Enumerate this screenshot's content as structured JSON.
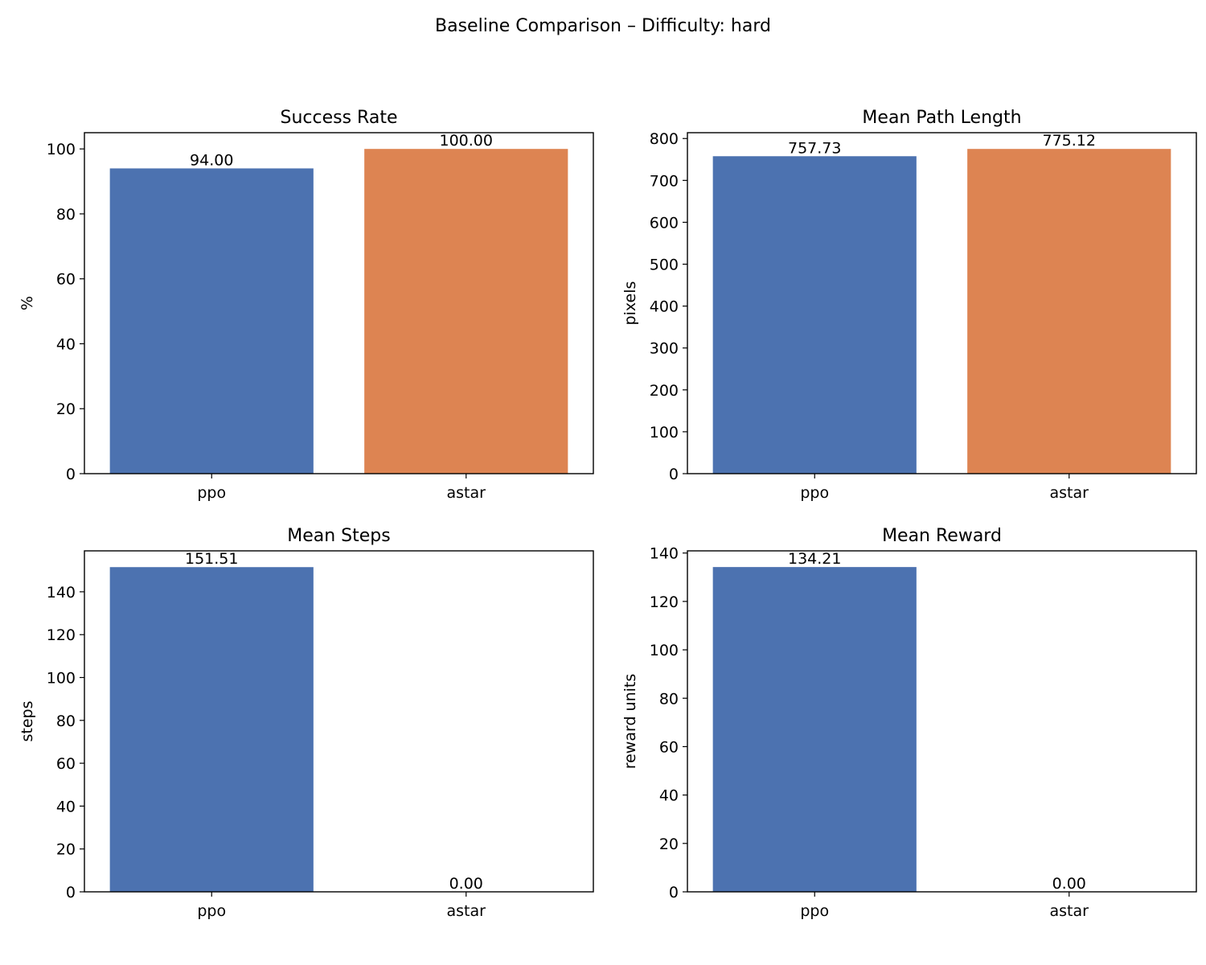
{
  "suptitle": "Baseline Comparison – Difficulty: hard",
  "colors": {
    "ppo": "#4c72b0",
    "astar": "#dd8452"
  },
  "chart_data": [
    {
      "type": "bar",
      "title": "Success Rate",
      "xlabel": "",
      "ylabel": "%",
      "categories": [
        "ppo",
        "astar"
      ],
      "values": [
        94.0,
        100.0
      ],
      "value_labels": [
        "94.00",
        "100.00"
      ],
      "ylim": [
        0,
        105
      ],
      "yticks": [
        0,
        20,
        40,
        60,
        80,
        100
      ],
      "grid": false,
      "bar_colors": [
        "#4c72b0",
        "#dd8452"
      ]
    },
    {
      "type": "bar",
      "title": "Mean Path Length",
      "xlabel": "",
      "ylabel": "pixels",
      "categories": [
        "ppo",
        "astar"
      ],
      "values": [
        757.73,
        775.12
      ],
      "value_labels": [
        "757.73",
        "775.12"
      ],
      "ylim": [
        0,
        813.9
      ],
      "yticks": [
        0,
        100,
        200,
        300,
        400,
        500,
        600,
        700,
        800
      ],
      "grid": false,
      "bar_colors": [
        "#4c72b0",
        "#dd8452"
      ]
    },
    {
      "type": "bar",
      "title": "Mean Steps",
      "xlabel": "",
      "ylabel": "steps",
      "categories": [
        "ppo",
        "astar"
      ],
      "values": [
        151.51,
        0.0
      ],
      "value_labels": [
        "151.51",
        "0.00"
      ],
      "ylim": [
        0,
        159.1
      ],
      "yticks": [
        0,
        20,
        40,
        60,
        80,
        100,
        120,
        140
      ],
      "grid": false,
      "bar_colors": [
        "#4c72b0",
        "#dd8452"
      ]
    },
    {
      "type": "bar",
      "title": "Mean Reward",
      "xlabel": "",
      "ylabel": "reward units",
      "categories": [
        "ppo",
        "astar"
      ],
      "values": [
        134.21,
        0.0
      ],
      "value_labels": [
        "134.21",
        "0.00"
      ],
      "ylim": [
        0,
        140.9
      ],
      "yticks": [
        0,
        20,
        40,
        60,
        80,
        100,
        120,
        140
      ],
      "grid": false,
      "bar_colors": [
        "#4c72b0",
        "#dd8452"
      ]
    }
  ]
}
